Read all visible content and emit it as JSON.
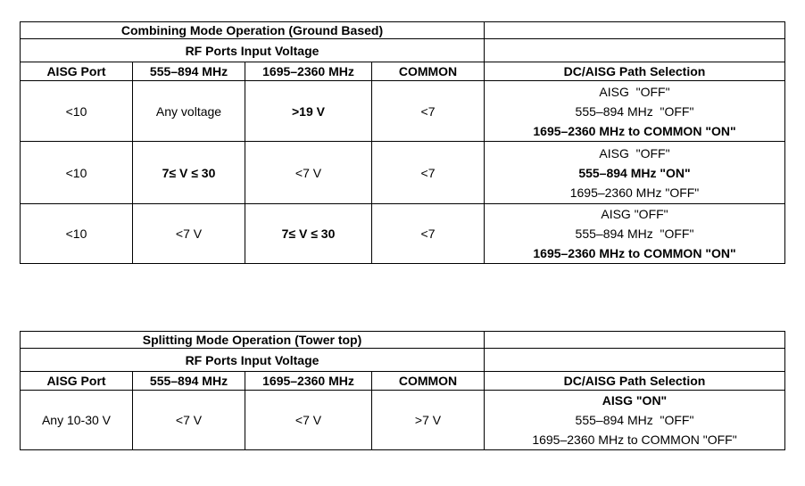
{
  "page": {
    "background": "#ffffff"
  },
  "colors": {
    "header_fill": "#d9d9d9",
    "highlight_fill": "#d9d9d9",
    "border": "#000000",
    "text": "#000000"
  },
  "tables": [
    {
      "title": "Combining Mode Operation (Ground Based)",
      "subtitle": "RF Ports Input Voltage",
      "columns": [
        "AISG Port",
        "555–894 MHz",
        "1695–2360 MHz",
        "COMMON"
      ],
      "path_column": "DC/AISG Path Selection",
      "rows": [
        {
          "cells": [
            {
              "text": "<10",
              "bold": false,
              "highlight": false
            },
            {
              "text": "Any voltage",
              "bold": false,
              "highlight": false
            },
            {
              "text": ">19 V",
              "bold": true,
              "highlight": true
            },
            {
              "text": "<7",
              "bold": false,
              "highlight": false
            }
          ],
          "path_lines": [
            {
              "text": "AISG  \"OFF\"",
              "bold": false
            },
            {
              "text": "555–894 MHz  \"OFF\"",
              "bold": false
            },
            {
              "text": "1695–2360 MHz to COMMON \"ON\"",
              "bold": true
            }
          ]
        },
        {
          "cells": [
            {
              "text": "<10",
              "bold": false,
              "highlight": false
            },
            {
              "text": "7≤ V ≤ 30",
              "bold": true,
              "highlight": true
            },
            {
              "text": "<7 V",
              "bold": false,
              "highlight": false
            },
            {
              "text": "<7",
              "bold": false,
              "highlight": false
            }
          ],
          "path_lines": [
            {
              "text": "AISG  \"OFF\"",
              "bold": false
            },
            {
              "text": "555–894 MHz \"ON\"",
              "bold": true
            },
            {
              "text": "1695–2360 MHz \"OFF\"",
              "bold": false
            }
          ]
        },
        {
          "cells": [
            {
              "text": "<10",
              "bold": false,
              "highlight": false
            },
            {
              "text": "<7 V",
              "bold": false,
              "highlight": false
            },
            {
              "text": "7≤ V ≤ 30",
              "bold": true,
              "highlight": true
            },
            {
              "text": "<7",
              "bold": false,
              "highlight": false
            }
          ],
          "path_lines": [
            {
              "text": "AISG \"OFF\"",
              "bold": false
            },
            {
              "text": "555–894 MHz  \"OFF\"",
              "bold": false
            },
            {
              "text": "1695–2360 MHz to COMMON \"ON\"",
              "bold": true
            }
          ]
        }
      ]
    },
    {
      "title": "Splitting Mode Operation (Tower top)",
      "subtitle": "RF Ports Input Voltage",
      "columns": [
        "AISG Port",
        "555–894 MHz",
        "1695–2360 MHz",
        "COMMON"
      ],
      "path_column": "DC/AISG Path Selection",
      "rows": [
        {
          "cells": [
            {
              "text": "Any 10-30 V",
              "bold": false,
              "highlight": false
            },
            {
              "text": "<7 V",
              "bold": false,
              "highlight": false
            },
            {
              "text": "<7 V",
              "bold": false,
              "highlight": false
            },
            {
              "text": ">7 V",
              "bold": false,
              "highlight": false
            }
          ],
          "path_lines": [
            {
              "text": "AISG \"ON\"",
              "bold": true
            },
            {
              "text": "555–894 MHz  \"OFF\"",
              "bold": false
            },
            {
              "text": "1695–2360 MHz to COMMON \"OFF\"",
              "bold": false
            }
          ]
        }
      ]
    }
  ]
}
